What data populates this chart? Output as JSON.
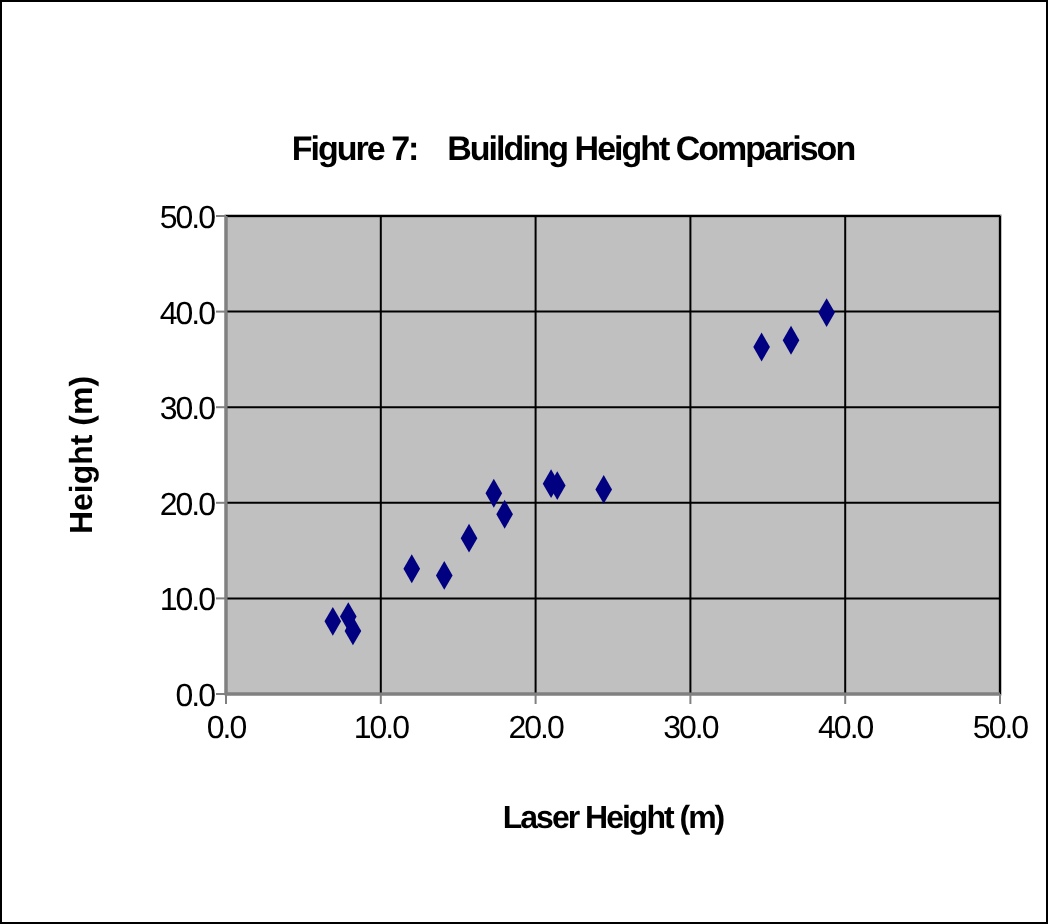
{
  "chart_data": {
    "type": "scatter",
    "title": "Figure 7:    Building Height Comparison",
    "xlabel": "Laser Height (m)",
    "ylabel": "Height (m)",
    "x": [
      6.9,
      7.9,
      8.2,
      12.0,
      14.1,
      15.7,
      17.3,
      18.0,
      21.0,
      21.4,
      24.4,
      34.6,
      36.5,
      38.8
    ],
    "series": [
      {
        "color": "#000080",
        "values": [
          7.6,
          8.1,
          6.6,
          13.1,
          12.4,
          16.3,
          21.0,
          18.8,
          22.0,
          21.8,
          21.4,
          36.3,
          37.0,
          39.9
        ]
      }
    ],
    "xlim": [
      0,
      50
    ],
    "ylim": [
      0,
      50
    ],
    "xticks": [
      {
        "value": 0,
        "label": "0.0"
      },
      {
        "value": 10,
        "label": "10.0"
      },
      {
        "value": 20,
        "label": "20.0"
      },
      {
        "value": 30,
        "label": "30.0"
      },
      {
        "value": 40,
        "label": "40.0"
      },
      {
        "value": 50,
        "label": "50.0"
      }
    ],
    "yticks": [
      {
        "value": 0,
        "label": "0.0"
      },
      {
        "value": 10,
        "label": "10.0"
      },
      {
        "value": 20,
        "label": "20.0"
      },
      {
        "value": 30,
        "label": "30.0"
      },
      {
        "value": 40,
        "label": "40.0"
      },
      {
        "value": 50,
        "label": "50.0"
      }
    ],
    "grid": true,
    "marker": "diamond"
  }
}
